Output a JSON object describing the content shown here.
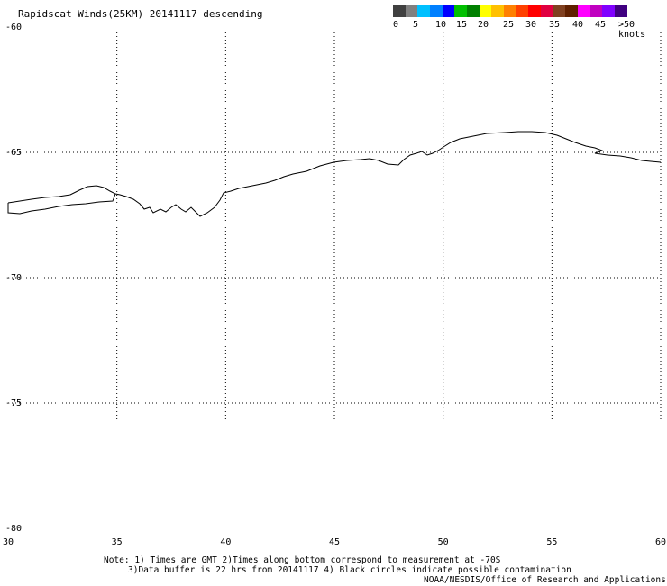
{
  "title": "Rapidscat Winds(25KM) 20141117 descending",
  "colorbar": {
    "labels": [
      "0",
      "5",
      "10",
      "15",
      "20",
      "25",
      "30",
      "35",
      "40",
      "45",
      ">50 knots"
    ],
    "colors": [
      "#404040",
      "#808080",
      "#00c0ff",
      "#0080ff",
      "#0000ff",
      "#00c000",
      "#008000",
      "#ffff00",
      "#ffc000",
      "#ff8000",
      "#ff4000",
      "#ff0000",
      "#e00040",
      "#804020",
      "#602000",
      "#ff00ff",
      "#c000c0",
      "#8000ff",
      "#400080"
    ]
  },
  "map": {
    "lon_ticks": [
      "30",
      "35",
      "40",
      "45",
      "50",
      "55",
      "60"
    ],
    "lat_ticks": [
      "-60",
      "-65",
      "-70",
      "-75",
      "-80"
    ],
    "lon_range": [
      30,
      60
    ],
    "lat_range": [
      -60,
      -80
    ],
    "grid": "dotted"
  },
  "notes": {
    "line1": "Note: 1) Times are GMT 2)Times along bottom correspond to measurement at -70S",
    "line2": "3)Data buffer is 22 hrs from 20141117 4) Black circles indicate possible contamination",
    "line3": "NOAA/NESDIS/Office of Research and Applications"
  }
}
